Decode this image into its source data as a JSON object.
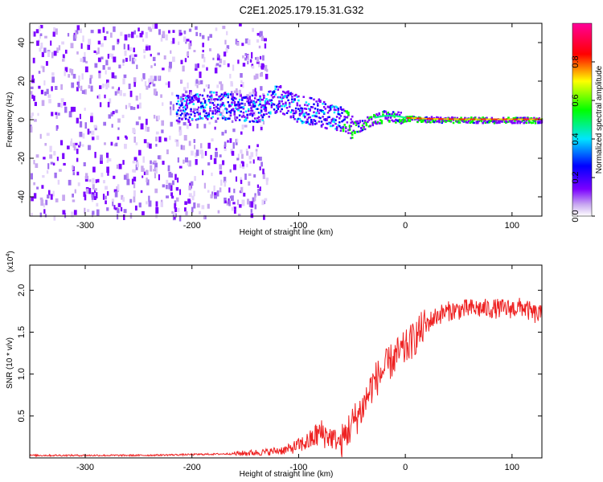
{
  "title": "C2E1.2025.179.15.31.G32",
  "spectrogram": {
    "xlabel": "Height of straight line (km)",
    "ylabel": "Frequency (Hz)",
    "colorbar_label": "Normalized spectral amplitude",
    "colorbar_ticks": [
      "0.0",
      "0.2",
      "0.4",
      "0.6",
      "0.8"
    ],
    "colormap": [
      "#ffffff",
      "#c8a8f0",
      "#7b00ff",
      "#0000ff",
      "#00e5ff",
      "#00ff00",
      "#ffff00",
      "#ff0000",
      "#ff00aa"
    ]
  },
  "snr_plot": {
    "xlabel": "Height of straight line (km)",
    "ylabel": "SNR (10 * v/v)",
    "multiplier_base": "(x10",
    "multiplier_exp": "4",
    "multiplier_close": ")",
    "line_color": "#ee2222"
  },
  "chart_data": [
    {
      "type": "heatmap",
      "title": "C2E1.2025.179.15.31.G32",
      "xlabel": "Height of straight line (km)",
      "ylabel": "Frequency (Hz)",
      "xlim": [
        -352,
        128
      ],
      "ylim": [
        -50,
        50
      ],
      "x_ticks": [
        -300,
        -200,
        -100,
        0,
        100
      ],
      "y_ticks": [
        -40,
        -20,
        0,
        20,
        40
      ],
      "colorbar": {
        "label": "Normalized spectral amplitude",
        "range": [
          0,
          1
        ],
        "ticks": [
          0.0,
          0.2,
          0.4,
          0.6,
          0.8
        ]
      },
      "signal_ridge": {
        "x": [
          -220,
          -200,
          -180,
          -160,
          -140,
          -130,
          -120,
          -110,
          -100,
          -90,
          -80,
          -70,
          -60,
          -50,
          -40,
          -30,
          -20,
          -10,
          0,
          20,
          40,
          60,
          80,
          100,
          128
        ],
        "freq": [
          6,
          7,
          8,
          7,
          6,
          8,
          12,
          8,
          6,
          5,
          4,
          2,
          0,
          -4,
          -2,
          1,
          2,
          2,
          1,
          0.5,
          0.3,
          0.2,
          0.2,
          0.2,
          0.2
        ]
      }
    },
    {
      "type": "line",
      "xlabel": "Height of straight line (km)",
      "ylabel": "SNR (10 * v/v)",
      "y_multiplier": 10000,
      "xlim": [
        -352,
        128
      ],
      "ylim": [
        0,
        2.3
      ],
      "x_ticks": [
        -300,
        -200,
        -100,
        0,
        100
      ],
      "y_ticks": [
        0.5,
        1.0,
        1.5,
        2.0
      ],
      "series": [
        {
          "x": [
            -352,
            -300,
            -250,
            -200,
            -160,
            -130,
            -110,
            -100,
            -90,
            -80,
            -70,
            -60,
            -55,
            -50,
            -40,
            -30,
            -20,
            -10,
            0,
            10,
            20,
            30,
            40,
            60,
            80,
            100,
            110,
            120,
            128
          ],
          "y": [
            0.03,
            0.03,
            0.03,
            0.04,
            0.05,
            0.07,
            0.1,
            0.15,
            0.2,
            0.3,
            0.25,
            0.18,
            0.3,
            0.4,
            0.6,
            0.9,
            1.05,
            1.2,
            1.3,
            1.45,
            1.6,
            1.7,
            1.75,
            1.78,
            1.78,
            1.78,
            1.8,
            1.72,
            1.7
          ]
        }
      ]
    }
  ]
}
